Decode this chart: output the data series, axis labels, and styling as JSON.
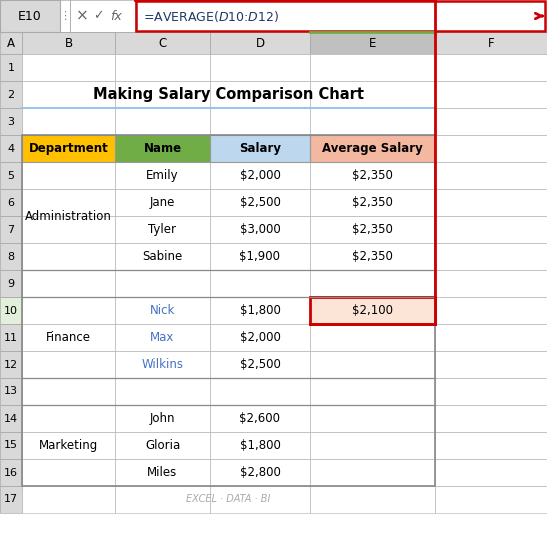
{
  "title": "Making Salary Comparison Chart",
  "formula_bar_cell": "E10",
  "formula_bar_formula": "=AVERAGE($D$10:$D$12)",
  "col_labels": [
    "A",
    "B",
    "C",
    "D",
    "E",
    "F"
  ],
  "table_headers": [
    "Department",
    "Name",
    "Salary",
    "Average Salary"
  ],
  "header_bg_colors": [
    "#FFC000",
    "#70AD47",
    "#BDD7EE",
    "#F4B8A0"
  ],
  "data_rows": [
    [
      "Administration",
      "Emily",
      "$2,000",
      "$2,350"
    ],
    [
      "Administration",
      "Jane",
      "$2,500",
      "$2,350"
    ],
    [
      "Administration",
      "Tyler",
      "$3,000",
      "$2,350"
    ],
    [
      "Administration",
      "Sabine",
      "$1,900",
      "$2,350"
    ],
    [
      "",
      "",
      "",
      ""
    ],
    [
      "Finance",
      "Nick",
      "$1,800",
      "$2,100"
    ],
    [
      "Finance",
      "Max",
      "$2,000",
      ""
    ],
    [
      "Finance",
      "Wilkins",
      "$2,500",
      ""
    ],
    [
      "",
      "",
      "",
      ""
    ],
    [
      "Marketing",
      "John",
      "$2,600",
      ""
    ],
    [
      "Marketing",
      "Gloria",
      "$1,800",
      ""
    ],
    [
      "Marketing",
      "Miles",
      "$2,800",
      ""
    ]
  ],
  "bg_color": "#FFFFFF",
  "grid_color": "#BFBFBF",
  "col_header_bg": "#D9D9D9",
  "col_header_E_bg": "#C0C0C0",
  "col_header_E_top": "#70AD47",
  "row_header_bg": "#D9D9D9",
  "row_header_E10_bg": "#E2EFDA",
  "title_line_color": "#9DC3E6",
  "formula_box_color": "#CC0000",
  "highlight_cell_bg": "#FCE4D6",
  "watermark_text": "EXCEL · DATA · BI",
  "watermark_color": "#AAAAAA",
  "name_color_finance": "#4472C4"
}
